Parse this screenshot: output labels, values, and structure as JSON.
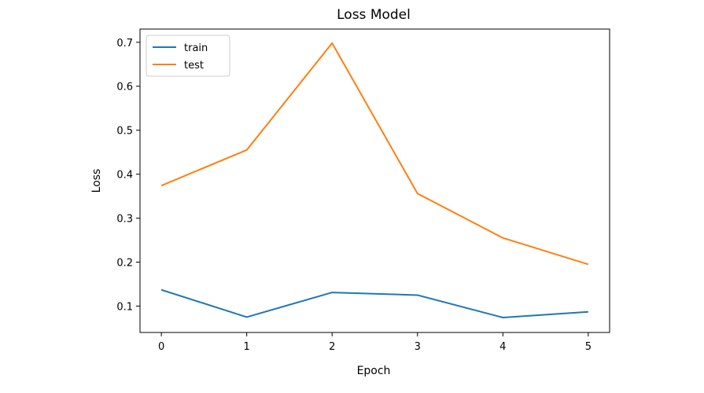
{
  "chart_data": {
    "type": "line",
    "title": "Loss Model",
    "xlabel": "Epoch",
    "ylabel": "Loss",
    "x": [
      0,
      1,
      2,
      3,
      4,
      5
    ],
    "xticks": [
      "0",
      "1",
      "2",
      "3",
      "4",
      "5"
    ],
    "yticks": [
      "0.1",
      "0.2",
      "0.3",
      "0.4",
      "0.5",
      "0.6",
      "0.7"
    ],
    "ytick_values": [
      0.1,
      0.2,
      0.3,
      0.4,
      0.5,
      0.6,
      0.7
    ],
    "xlim": [
      -0.25,
      5.25
    ],
    "ylim": [
      0.04,
      0.73
    ],
    "grid": false,
    "legend_position": "top-left",
    "series": [
      {
        "name": "train",
        "color": "#1f77b4",
        "values": [
          0.137,
          0.075,
          0.131,
          0.125,
          0.074,
          0.087
        ]
      },
      {
        "name": "test",
        "color": "#ff7f0e",
        "values": [
          0.374,
          0.455,
          0.698,
          0.356,
          0.255,
          0.195
        ]
      }
    ]
  }
}
